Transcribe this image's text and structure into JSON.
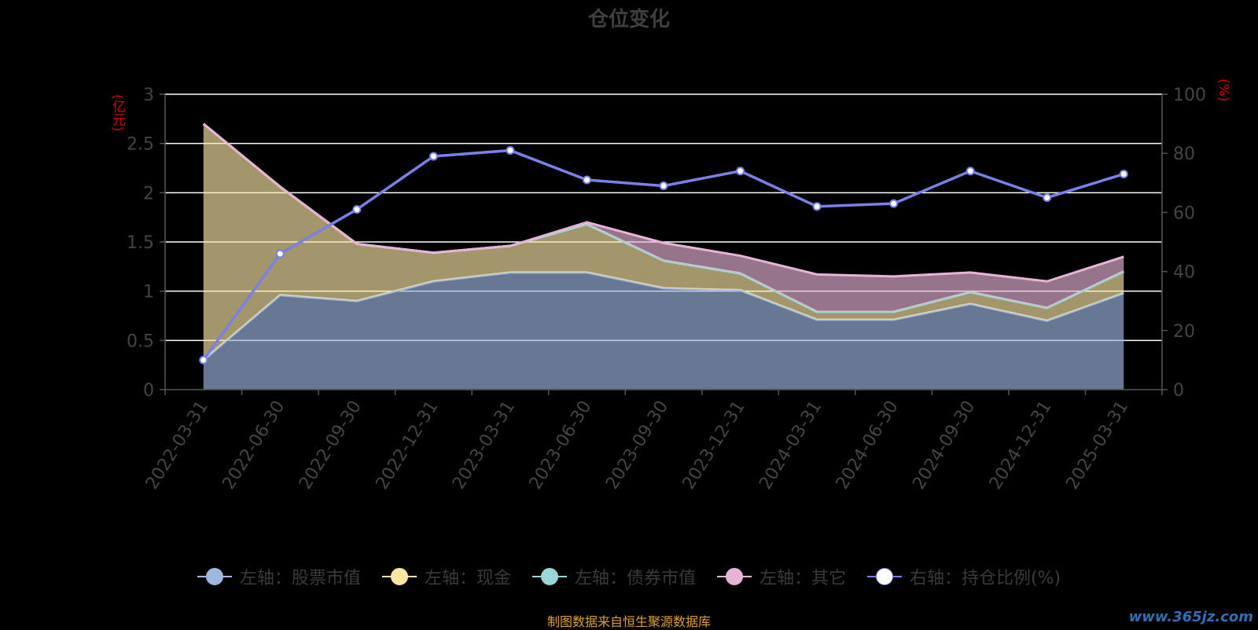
{
  "chart_data": {
    "type": "area",
    "title": "仓位变化",
    "ylabel_left": "(亿元)",
    "ylabel_right": "(%)",
    "categories": [
      "2022-03-31",
      "2022-06-30",
      "2022-09-30",
      "2022-12-31",
      "2023-03-31",
      "2023-06-30",
      "2023-09-30",
      "2023-12-31",
      "2024-03-31",
      "2024-06-30",
      "2024-09-30",
      "2024-12-31",
      "2025-03-31"
    ],
    "ylim_left": [
      0,
      3
    ],
    "yticks_left": [
      "0",
      "0.5",
      "1",
      "1.5",
      "2",
      "2.5",
      "3"
    ],
    "ylim_right": [
      0,
      100
    ],
    "yticks_right": [
      "0",
      "20",
      "40",
      "60",
      "80",
      "100"
    ],
    "grid": true,
    "stacked": true,
    "series": [
      {
        "name": "左轴：股票市值",
        "axis": "left",
        "color": "#a0b7e0",
        "values": [
          0.3,
          0.96,
          0.9,
          1.1,
          1.19,
          1.19,
          1.03,
          1.01,
          0.71,
          0.71,
          0.87,
          0.7,
          0.98
        ]
      },
      {
        "name": "左轴：现金",
        "axis": "left",
        "color": "#fbe6a3",
        "values": [
          2.4,
          1.1,
          0.58,
          0.29,
          0.27,
          0.49,
          0.28,
          0.17,
          0.08,
          0.08,
          0.12,
          0.13,
          0.22
        ]
      },
      {
        "name": "左轴：债券市值",
        "axis": "left",
        "color": "#98d7d7",
        "values": [
          0,
          0,
          0,
          0,
          0,
          0,
          0,
          0,
          0,
          0,
          0,
          0,
          0
        ]
      },
      {
        "name": "左轴：其它",
        "axis": "left",
        "color": "#e7b3d6",
        "values": [
          0,
          0,
          0,
          0,
          0,
          0.02,
          0.18,
          0.18,
          0.38,
          0.36,
          0.2,
          0.27,
          0.15
        ]
      },
      {
        "name": "右轴：持仓比例(%)",
        "axis": "right",
        "color": "#7b7fe8",
        "values": [
          10,
          46,
          61,
          79,
          81,
          71,
          69,
          74,
          62,
          63,
          74,
          65,
          73
        ]
      }
    ],
    "legend_position": "bottom",
    "source": "制图数据来自恒生聚源数据库",
    "watermark": "www.365jz.com"
  }
}
